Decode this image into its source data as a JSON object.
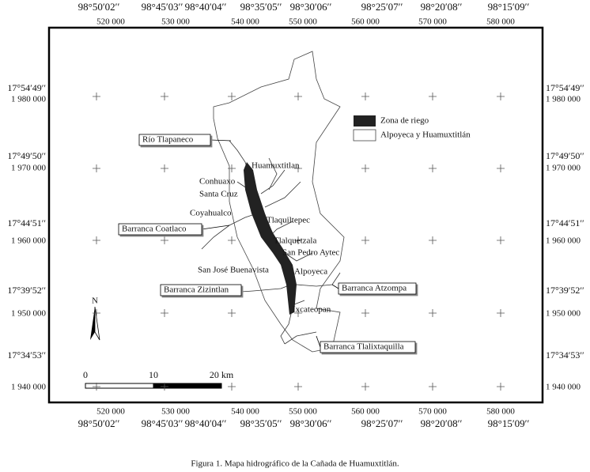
{
  "map": {
    "lon_labels": [
      "98°50′02′′",
      "98°45′03′′",
      "98°40′04′′",
      "98°35′05′′",
      "98°30′06′′",
      "98°25′07′′",
      "98°20′08′′",
      "98°15′09′′"
    ],
    "utm_x": [
      "520 000",
      "530 000",
      "540 000",
      "550 000",
      "560 000",
      "570 000",
      "580 000"
    ],
    "lat_labels": [
      "17°54′49′′",
      "17°49′50′′",
      "17°44′51′′",
      "17°39′52′′",
      "17°34′53′′"
    ],
    "utm_y": [
      "1 980 000",
      "1 970 000",
      "1 960 000",
      "1 950 000",
      "1 940 000"
    ],
    "legend": [
      "Zona de riego",
      "Alpoyeca y Huamuxtitlán"
    ],
    "places": [
      "Huamuxtitlan",
      "Conhuaxo",
      "Santa Cruz",
      "Coyahualco",
      "Tlaquiltepec",
      "Tlalquetzala",
      "San Pedro Aytec",
      "San José Buenavista",
      "Alpoyeca",
      "Ixcateopan"
    ],
    "callouts": [
      "Río Tlapaneco",
      "Barranca Coatlaco",
      "Barranca Zizintlan",
      "Barranca Atzompa",
      "Barranca Tlalixtaquilla"
    ],
    "scale": [
      "0",
      "10",
      "20 km"
    ],
    "north": "N"
  },
  "caption": "Figura 1. Mapa hidrográfico de la Cañada de Huamuxtitlán."
}
